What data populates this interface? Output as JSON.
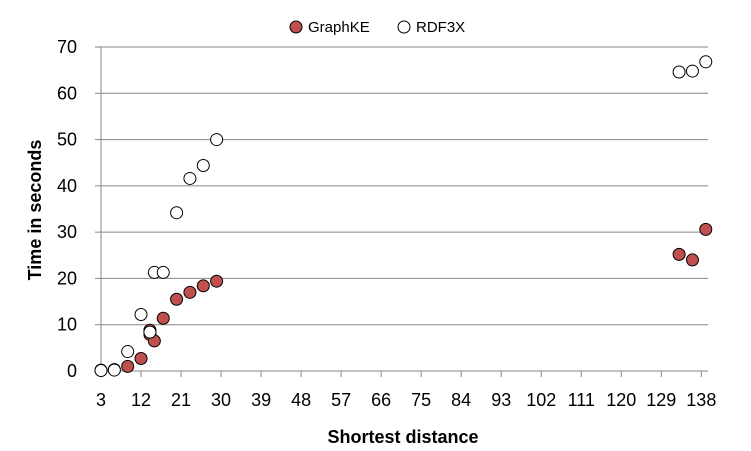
{
  "chart_data": {
    "type": "scatter",
    "xlabel": "Shortest distance",
    "ylabel": "Time in seconds",
    "x_ticks": [
      "3",
      "12",
      "21",
      "30",
      "39",
      "48",
      "57",
      "66",
      "75",
      "84",
      "93",
      "102",
      "111",
      "120",
      "129",
      "138"
    ],
    "xlim": [
      3,
      139.5
    ],
    "ylim": [
      0,
      70
    ],
    "y_ticks": [
      "0",
      "10",
      "20",
      "30",
      "40",
      "50",
      "60",
      "70"
    ],
    "grid": "horizontal",
    "legend_position": "top",
    "series": [
      {
        "name": "GraphKE",
        "color": "#c0504d",
        "points": [
          {
            "x": 3,
            "y": 0.2
          },
          {
            "x": 6,
            "y": 0.3
          },
          {
            "x": 9,
            "y": 1.0
          },
          {
            "x": 12,
            "y": 2.7
          },
          {
            "x": 14,
            "y": 8.8
          },
          {
            "x": 14,
            "y": 7.9
          },
          {
            "x": 15,
            "y": 6.5
          },
          {
            "x": 17,
            "y": 11.4
          },
          {
            "x": 20,
            "y": 15.5
          },
          {
            "x": 23,
            "y": 17.0
          },
          {
            "x": 26,
            "y": 18.4
          },
          {
            "x": 29,
            "y": 19.4
          },
          {
            "x": 133,
            "y": 25.2
          },
          {
            "x": 136,
            "y": 24.0
          },
          {
            "x": 139,
            "y": 30.6
          }
        ]
      },
      {
        "name": "RDF3X",
        "color": "#ffffff",
        "points": [
          {
            "x": 3,
            "y": 0.1
          },
          {
            "x": 6,
            "y": 0.2
          },
          {
            "x": 9,
            "y": 4.2
          },
          {
            "x": 12,
            "y": 12.2
          },
          {
            "x": 14,
            "y": 8.4
          },
          {
            "x": 15,
            "y": 21.3
          },
          {
            "x": 17,
            "y": 21.3
          },
          {
            "x": 20,
            "y": 34.2
          },
          {
            "x": 23,
            "y": 41.6
          },
          {
            "x": 26,
            "y": 44.4
          },
          {
            "x": 29,
            "y": 50.0
          },
          {
            "x": 133,
            "y": 64.6
          },
          {
            "x": 136,
            "y": 64.8
          },
          {
            "x": 139,
            "y": 66.8
          }
        ]
      }
    ]
  }
}
